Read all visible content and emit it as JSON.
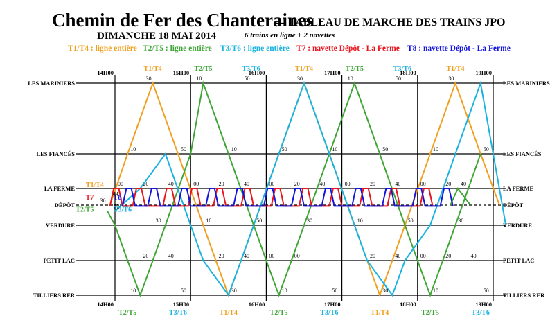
{
  "header": {
    "title": "Chemin de Fer des Chanteraines",
    "subtitle": "— TABLEAU DE MARCHE DES TRAINS JPO",
    "date": "DIMANCHE 18 MAI 2014",
    "note": "6 trains en ligne + 2 navettes"
  },
  "legend": [
    {
      "text": "T1/T4 : ligne entière",
      "color": "#f0a020"
    },
    {
      "text": "T2/T5 : ligne entière",
      "color": "#3fa535"
    },
    {
      "text": "T3/T6 : ligne entière",
      "color": "#1ab3e0"
    },
    {
      "text": "T7 : navette Dépôt - La Ferme",
      "color": "#e8141e"
    },
    {
      "text": "T8 : navette Dépôt - La Ferme",
      "color": "#1414dc"
    }
  ],
  "colors": {
    "t1t4": "#f0a020",
    "t2t5": "#3fa535",
    "t3t6": "#1ab3e0",
    "t7": "#e8141e",
    "t8": "#1414dc"
  },
  "chart_data": {
    "type": "line",
    "x_unit": "minutes after 14H00",
    "xlim": [
      0,
      300
    ],
    "hour_labels": [
      {
        "t": 0,
        "label": "14H00"
      },
      {
        "t": 60,
        "label": "15H00"
      },
      {
        "t": 120,
        "label": "16H00"
      },
      {
        "t": 180,
        "label": "17H00"
      },
      {
        "t": 240,
        "label": "18H00"
      },
      {
        "t": 300,
        "label": "19H00"
      }
    ],
    "stations": [
      {
        "name": "LES MARINIERS",
        "dashed": false
      },
      {
        "name": "LES FIANCÉS",
        "dashed": false
      },
      {
        "name": "LA FERME",
        "dashed": false
      },
      {
        "name": "DÉPÔT",
        "dashed": true
      },
      {
        "name": "VERDURE",
        "dashed": false
      },
      {
        "name": "PETIT LAC",
        "dashed": false
      },
      {
        "name": "TILLIERS RER",
        "dashed": false
      }
    ],
    "series": [
      {
        "name": "T1/T4",
        "color": "t1t4",
        "points": [
          [
            -4,
            3
          ],
          [
            10,
            1
          ],
          [
            30,
            0
          ],
          [
            50,
            1
          ],
          [
            70,
            4
          ],
          [
            80,
            5
          ],
          [
            90,
            6
          ],
          [
            100,
            5
          ],
          [
            110,
            4
          ],
          [
            130,
            1
          ],
          [
            150,
            0
          ],
          [
            170,
            1
          ],
          [
            190,
            4
          ],
          [
            200,
            5
          ],
          [
            210,
            6
          ],
          [
            220,
            5
          ],
          [
            230,
            4
          ],
          [
            250,
            1
          ],
          [
            270,
            0
          ],
          [
            290,
            1
          ],
          [
            305,
            3
          ]
        ]
      },
      {
        "name": "T2/T5",
        "color": "t2t5",
        "points": [
          [
            -6,
            3.3
          ],
          [
            0,
            4
          ],
          [
            10,
            5
          ],
          [
            20,
            6
          ],
          [
            30,
            5
          ],
          [
            40,
            4
          ],
          [
            60,
            1
          ],
          [
            70,
            0
          ],
          [
            90,
            1
          ],
          [
            110,
            4
          ],
          [
            120,
            5
          ],
          [
            130,
            6
          ],
          [
            140,
            5
          ],
          [
            150,
            4
          ],
          [
            170,
            1
          ],
          [
            190,
            0
          ],
          [
            210,
            1
          ],
          [
            230,
            4
          ],
          [
            240,
            5
          ],
          [
            250,
            6
          ],
          [
            260,
            5
          ],
          [
            270,
            4
          ],
          [
            290,
            1
          ]
        ]
      },
      {
        "name": "T2/T5 navette",
        "color": "t2t5",
        "points": [
          [
            266,
            3
          ],
          [
            272,
            2
          ],
          [
            282,
            3
          ]
        ]
      },
      {
        "name": "T3/T6",
        "color": "t3t6",
        "points": [
          [
            0,
            3.3
          ],
          [
            20,
            2
          ],
          [
            40,
            1
          ],
          [
            60,
            4
          ],
          [
            70,
            5
          ],
          [
            90,
            6
          ],
          [
            100,
            5
          ],
          [
            110,
            4
          ],
          [
            130,
            1
          ],
          [
            150,
            0
          ],
          [
            170,
            1
          ],
          [
            190,
            4
          ],
          [
            200,
            5
          ],
          [
            220,
            6
          ],
          [
            230,
            5
          ],
          [
            250,
            4
          ],
          [
            270,
            1
          ],
          [
            290,
            0
          ],
          [
            300,
            1
          ],
          [
            310,
            4
          ]
        ]
      },
      {
        "name": "T7",
        "color": "t7",
        "style": "shuttle",
        "base": 0.0,
        "trips": [
          [
            -4,
            0
          ],
          [
            14,
            0
          ],
          [
            38,
            0
          ],
          [
            58,
            0
          ],
          [
            78,
            0
          ],
          [
            100,
            0
          ],
          [
            124,
            0
          ],
          [
            146,
            0
          ],
          [
            170,
            0
          ],
          [
            194,
            0
          ],
          [
            216,
            0
          ],
          [
            242,
            0
          ]
        ]
      },
      {
        "name": "T8",
        "color": "t8",
        "style": "shuttle",
        "base": 0.0,
        "trips": [
          [
            6,
            0
          ],
          [
            26,
            0
          ],
          [
            50,
            0
          ],
          [
            72,
            0
          ],
          [
            94,
            0
          ],
          [
            118,
            0
          ],
          [
            140,
            0
          ],
          [
            164,
            0
          ],
          [
            188,
            0
          ],
          [
            212,
            0
          ],
          [
            236,
            0
          ],
          [
            258,
            0
          ]
        ]
      }
    ],
    "minute_labels": [
      {
        "t": 30,
        "s": 0,
        "text": "30",
        "color": "t1t4"
      },
      {
        "t": 70,
        "s": 0,
        "text": "10",
        "color": "t2t5"
      },
      {
        "t": 108,
        "s": 0,
        "text": "50",
        "color": "t3t6"
      },
      {
        "t": 150,
        "s": 0,
        "text": "30",
        "color": "t1t4"
      },
      {
        "t": 190,
        "s": 0,
        "text": "10",
        "color": "t2t5"
      },
      {
        "t": 228,
        "s": 0,
        "text": "50",
        "color": "t3t6"
      },
      {
        "t": 270,
        "s": 0,
        "text": "30",
        "color": "t1t4"
      },
      {
        "t": 10,
        "s": 1,
        "text": "10",
        "color": "t1t4"
      },
      {
        "t": 50,
        "s": 1,
        "text": "50",
        "color": "t1t4"
      },
      {
        "t": 90,
        "s": 1,
        "text": "10",
        "color": "t3t6"
      },
      {
        "t": 130,
        "s": 1,
        "text": "50",
        "color": "t2t5"
      },
      {
        "t": 170,
        "s": 1,
        "text": "10",
        "color": "t1t4"
      },
      {
        "t": 210,
        "s": 1,
        "text": "50",
        "color": "t3t6"
      },
      {
        "t": 250,
        "s": 1,
        "text": "10",
        "color": "t1t4"
      },
      {
        "t": 290,
        "s": 1,
        "text": "50",
        "color": "t1t4"
      },
      {
        "t": 0,
        "s": 2,
        "text": "00",
        "color": "t1t4"
      },
      {
        "t": 20,
        "s": 2,
        "text": "20",
        "color": "t3t6"
      },
      {
        "t": 40,
        "s": 2,
        "text": "40",
        "color": "t2t5"
      },
      {
        "t": 60,
        "s": 2,
        "text": "00",
        "color": "t2t5"
      },
      {
        "t": 80,
        "s": 2,
        "text": "20",
        "color": "t2t5"
      },
      {
        "t": 100,
        "s": 2,
        "text": "40",
        "color": "t3t6"
      },
      {
        "t": 120,
        "s": 2,
        "text": "00",
        "color": "t1t4"
      },
      {
        "t": 140,
        "s": 2,
        "text": "20",
        "color": "t2t5"
      },
      {
        "t": 160,
        "s": 2,
        "text": "40",
        "color": "t2t5"
      },
      {
        "t": 180,
        "s": 2,
        "text": "00",
        "color": "t1t4"
      },
      {
        "t": 200,
        "s": 2,
        "text": "20",
        "color": "t2t5"
      },
      {
        "t": 220,
        "s": 2,
        "text": "40",
        "color": "t2t5"
      },
      {
        "t": 240,
        "s": 2,
        "text": "00",
        "color": "t1t4"
      },
      {
        "t": 260,
        "s": 2,
        "text": "20",
        "color": "t1t4"
      },
      {
        "t": 272,
        "s": 2,
        "text": "40",
        "color": "t2t5"
      },
      {
        "t": -14,
        "s": 3,
        "text": "36",
        "color": "t7"
      },
      {
        "t": -4,
        "s": 2.6,
        "text": "44",
        "color": "t7"
      },
      {
        "t": -3,
        "s": 3.3,
        "text": "52",
        "color": "t7"
      },
      {
        "t": 30,
        "s": 4,
        "text": "30",
        "color": "t3t6"
      },
      {
        "t": 70,
        "s": 4,
        "text": "10",
        "color": "t2t5"
      },
      {
        "t": 110,
        "s": 4,
        "text": "50",
        "color": "t1t4"
      },
      {
        "t": 150,
        "s": 4,
        "text": "30",
        "color": "t2t5"
      },
      {
        "t": 190,
        "s": 4,
        "text": "10",
        "color": "t3t6"
      },
      {
        "t": 230,
        "s": 4,
        "text": "50",
        "color": "t1t4"
      },
      {
        "t": 270,
        "s": 4,
        "text": "30",
        "color": "t3t6"
      },
      {
        "t": 20,
        "s": 5,
        "text": "20",
        "color": "t2t5"
      },
      {
        "t": 40,
        "s": 5,
        "text": "40",
        "color": "t3t6"
      },
      {
        "t": 80,
        "s": 5,
        "text": "20",
        "color": "t2t5"
      },
      {
        "t": 100,
        "s": 5,
        "text": "40",
        "color": "t3t6"
      },
      {
        "t": 120,
        "s": 5,
        "text": "00",
        "color": "t2t5"
      },
      {
        "t": 140,
        "s": 5,
        "text": "00",
        "color": "t3t6"
      },
      {
        "t": 200,
        "s": 5,
        "text": "20",
        "color": "t3t6"
      },
      {
        "t": 220,
        "s": 5,
        "text": "40",
        "color": "t2t5"
      },
      {
        "t": 240,
        "s": 5,
        "text": "00",
        "color": "t1t4"
      },
      {
        "t": 260,
        "s": 5,
        "text": "20",
        "color": "t3t6"
      },
      {
        "t": 280,
        "s": 5,
        "text": "40",
        "color": "t3t6"
      },
      {
        "t": 10,
        "s": 6,
        "text": "10",
        "color": "t2t5"
      },
      {
        "t": 50,
        "s": 6,
        "text": "50",
        "color": "t3t6"
      },
      {
        "t": 90,
        "s": 6,
        "text": "30",
        "color": "t1t4"
      },
      {
        "t": 130,
        "s": 6,
        "text": "10",
        "color": "t2t5"
      },
      {
        "t": 170,
        "s": 6,
        "text": "50",
        "color": "t3t6"
      },
      {
        "t": 210,
        "s": 6,
        "text": "30",
        "color": "t1t4"
      },
      {
        "t": 250,
        "s": 6,
        "text": "10",
        "color": "t2t5"
      },
      {
        "t": 290,
        "s": 6,
        "text": "50",
        "color": "t3t6"
      }
    ],
    "train_labels_top": [
      {
        "t": 30,
        "text": "T1/T4",
        "color": "t1t4"
      },
      {
        "t": 70,
        "text": "T2/T5",
        "color": "t2t5"
      },
      {
        "t": 108,
        "text": "T3/T6",
        "color": "t3t6"
      },
      {
        "t": 150,
        "text": "T1/T4",
        "color": "t1t4"
      },
      {
        "t": 190,
        "text": "T2/T5",
        "color": "t2t5"
      },
      {
        "t": 228,
        "text": "T3/T6",
        "color": "t3t6"
      },
      {
        "t": 270,
        "text": "T1/T4",
        "color": "t1t4"
      }
    ],
    "train_labels_bottom": [
      {
        "t": 10,
        "text": "T2/T5",
        "color": "t2t5"
      },
      {
        "t": 50,
        "text": "T3/T6",
        "color": "t3t6"
      },
      {
        "t": 90,
        "text": "T1/T4",
        "color": "t1t4"
      },
      {
        "t": 130,
        "text": "T2/T5",
        "color": "t2t5"
      },
      {
        "t": 170,
        "text": "T3/T6",
        "color": "t3t6"
      },
      {
        "t": 210,
        "text": "T1/T4",
        "color": "t1t4"
      },
      {
        "t": 250,
        "text": "T2/T5",
        "color": "t2t5"
      },
      {
        "t": 290,
        "text": "T3/T6",
        "color": "t3t6"
      }
    ],
    "train_labels_side": [
      {
        "t": -16,
        "s": 2,
        "text": "T1/T4",
        "color": "t1t4"
      },
      {
        "t": -20,
        "s": 2.75,
        "text": "T7",
        "color": "t7"
      },
      {
        "t": 2,
        "s": 2.75,
        "text": "T8",
        "color": "t8"
      },
      {
        "t": -24,
        "s": 3.4,
        "text": "T2/T5",
        "color": "t2t5"
      },
      {
        "t": 6,
        "s": 3.4,
        "text": "T3/T6",
        "color": "t3t6"
      }
    ]
  }
}
